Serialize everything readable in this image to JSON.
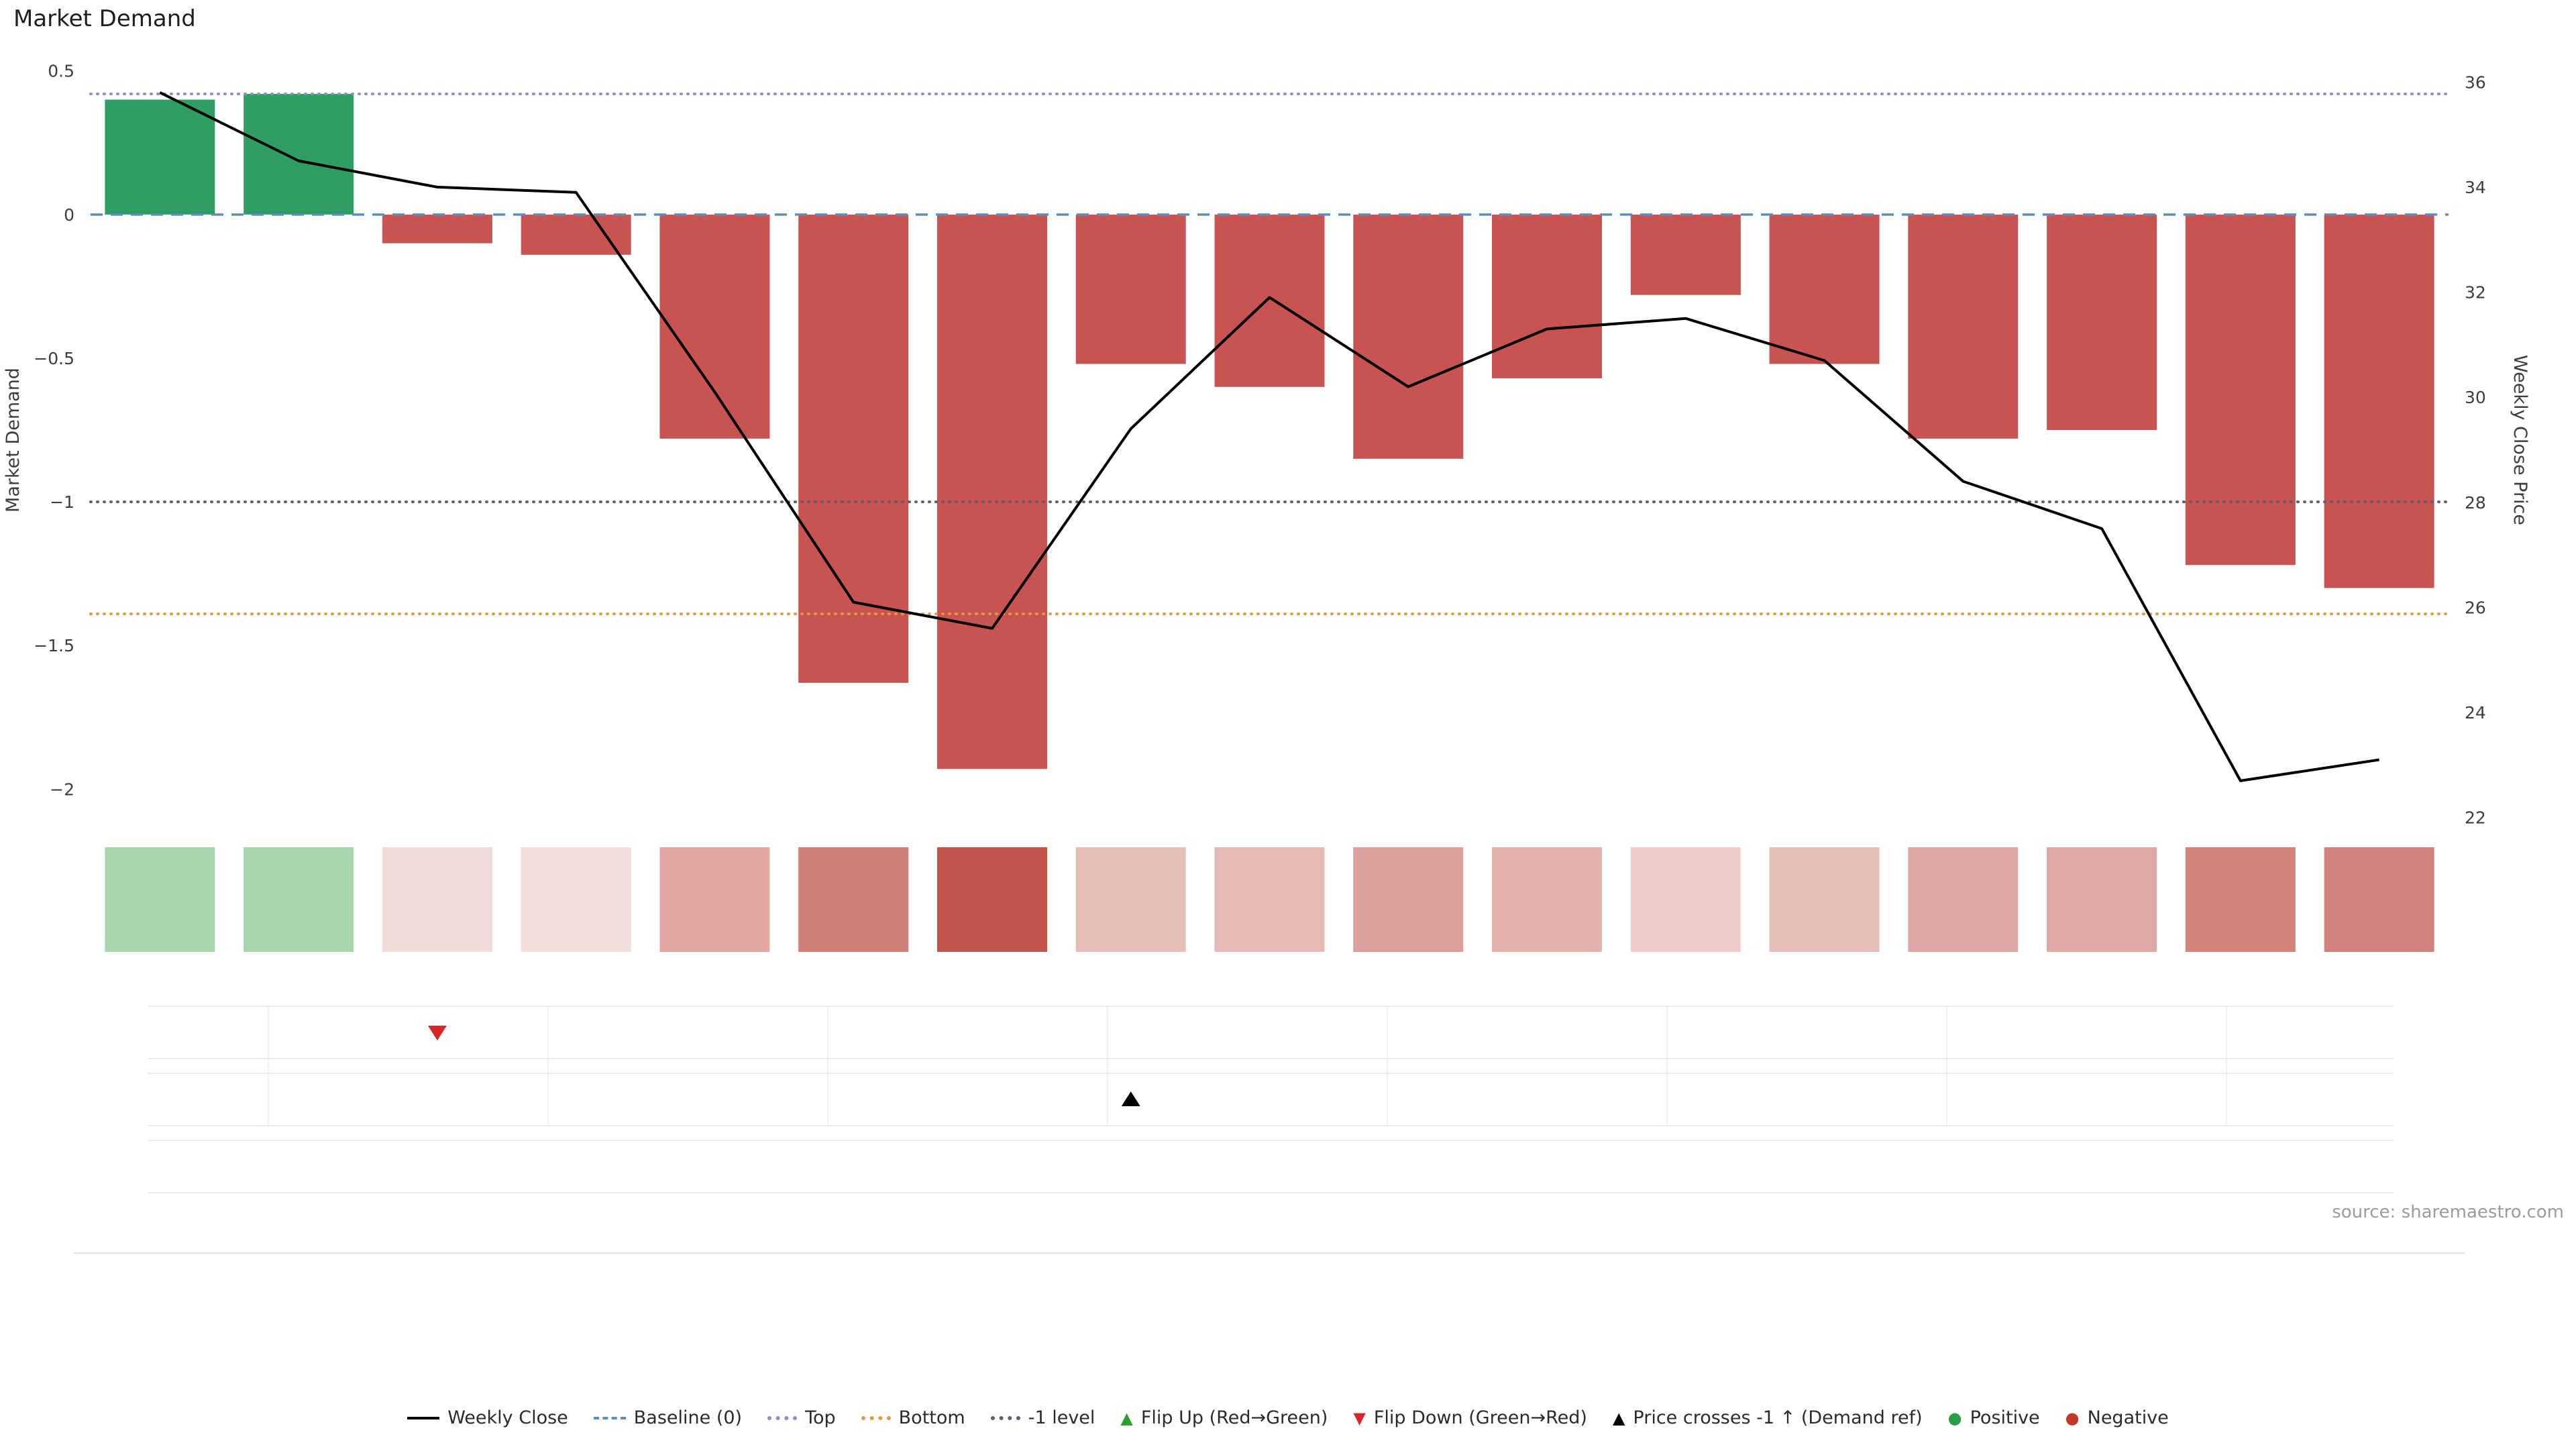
{
  "title": "Market Demand",
  "source_note": "source: sharemaestro.com",
  "chart_data": {
    "type": "bar",
    "subtype": "bar+line combo with heatmap strip and event marker rows",
    "title": "Market Demand",
    "n_points": 17,
    "grid": false,
    "legend_position": "bottom center",
    "series": [
      {
        "name": "Market Demand",
        "type": "bar",
        "axis": "left",
        "positive_color": "#2f9e62",
        "negative_color": "#c75450",
        "values": [
          0.4,
          0.42,
          -0.1,
          -0.14,
          -0.78,
          -1.63,
          -1.93,
          -0.52,
          -0.6,
          -0.85,
          -0.57,
          -0.28,
          -0.52,
          -0.78,
          -0.75,
          -1.22,
          -1.3
        ]
      },
      {
        "name": "Weekly Close",
        "type": "line",
        "axis": "right",
        "color": "#000000",
        "values": [
          35.8,
          34.5,
          34.0,
          33.9,
          30.1,
          26.1,
          25.6,
          29.4,
          31.9,
          30.2,
          31.3,
          31.5,
          30.7,
          28.4,
          27.5,
          22.7,
          23.1
        ]
      }
    ],
    "left_axis": {
      "label": "Market Demand",
      "ticks": [
        "0.5",
        "0",
        "−0.5",
        "−1",
        "−1.5",
        "−2"
      ],
      "tick_values": [
        0.5,
        0,
        -0.5,
        -1,
        -1.5,
        -2
      ],
      "range": [
        -2.13,
        0.56
      ]
    },
    "right_axis": {
      "label": "Weekly Close Price",
      "ticks": [
        "36",
        "34",
        "32",
        "30",
        "28",
        "26",
        "24",
        "22"
      ],
      "tick_values": [
        36,
        34,
        32,
        30,
        28,
        26,
        24,
        22
      ],
      "range": [
        21.83,
        36.54
      ]
    },
    "reference_lines": [
      {
        "name": "baseline",
        "label": "Baseline (0)",
        "value": 0,
        "style": "dashed",
        "color": "#5a8fc0"
      },
      {
        "name": "top",
        "label": "Top",
        "value": 0.42,
        "style": "dotted",
        "color": "#8b8fc8"
      },
      {
        "name": "bottom",
        "label": "Bottom",
        "value": -1.39,
        "style": "dotted",
        "color": "#e8973f"
      },
      {
        "name": "minus1",
        "label": "-1 level",
        "value": -1,
        "style": "dotted",
        "color": "#5f5c6e"
      }
    ],
    "heatmap_strip": {
      "colors": [
        "#a5d6ae",
        "#a5d6ae",
        "#f1dada",
        "#f3dede",
        "#dfa6a2",
        "#cf7d77",
        "#c2544c",
        "#e7bdb9",
        "#e5bab6",
        "#dba09b",
        "#e3b3ae",
        "#edccc9",
        "#e7bdb9",
        "#dfa7a3",
        "#e0a9a5",
        "#d2847d",
        "#d1827c"
      ]
    },
    "event_rows": [
      {
        "name": "flip-row",
        "markers": [
          {
            "index": 2,
            "symbol": "triangle-down",
            "color": "#d62728"
          }
        ]
      },
      {
        "name": "price-cross-row",
        "markers": [
          {
            "index": 7,
            "symbol": "triangle-up",
            "color": "#000000"
          }
        ]
      },
      {
        "name": "bottom-row",
        "markers": []
      }
    ]
  },
  "legend": {
    "items": [
      {
        "label": "Weekly Close",
        "symbol": "line",
        "color": "#000000"
      },
      {
        "label": "Baseline (0)",
        "symbol": "dashed",
        "color": "#5a8fc0"
      },
      {
        "label": "Top",
        "symbol": "dotted",
        "color": "#8b8fc8"
      },
      {
        "label": "Bottom",
        "symbol": "dotted",
        "color": "#e8973f"
      },
      {
        "label": "-1 level",
        "symbol": "dotted",
        "color": "#5f5c6e"
      },
      {
        "label": "Flip Up (Red→Green)",
        "symbol": "triangle-up",
        "color": "#2ca02c"
      },
      {
        "label": "Flip Down (Green→Red)",
        "symbol": "triangle-down",
        "color": "#d62728"
      },
      {
        "label": "Price crosses -1 ↑ (Demand ref)",
        "symbol": "triangle-up",
        "color": "#000000"
      },
      {
        "label": "Positive",
        "symbol": "dot",
        "color": "#2a9d47"
      },
      {
        "label": "Negative",
        "symbol": "dot",
        "color": "#c0392b"
      }
    ]
  }
}
